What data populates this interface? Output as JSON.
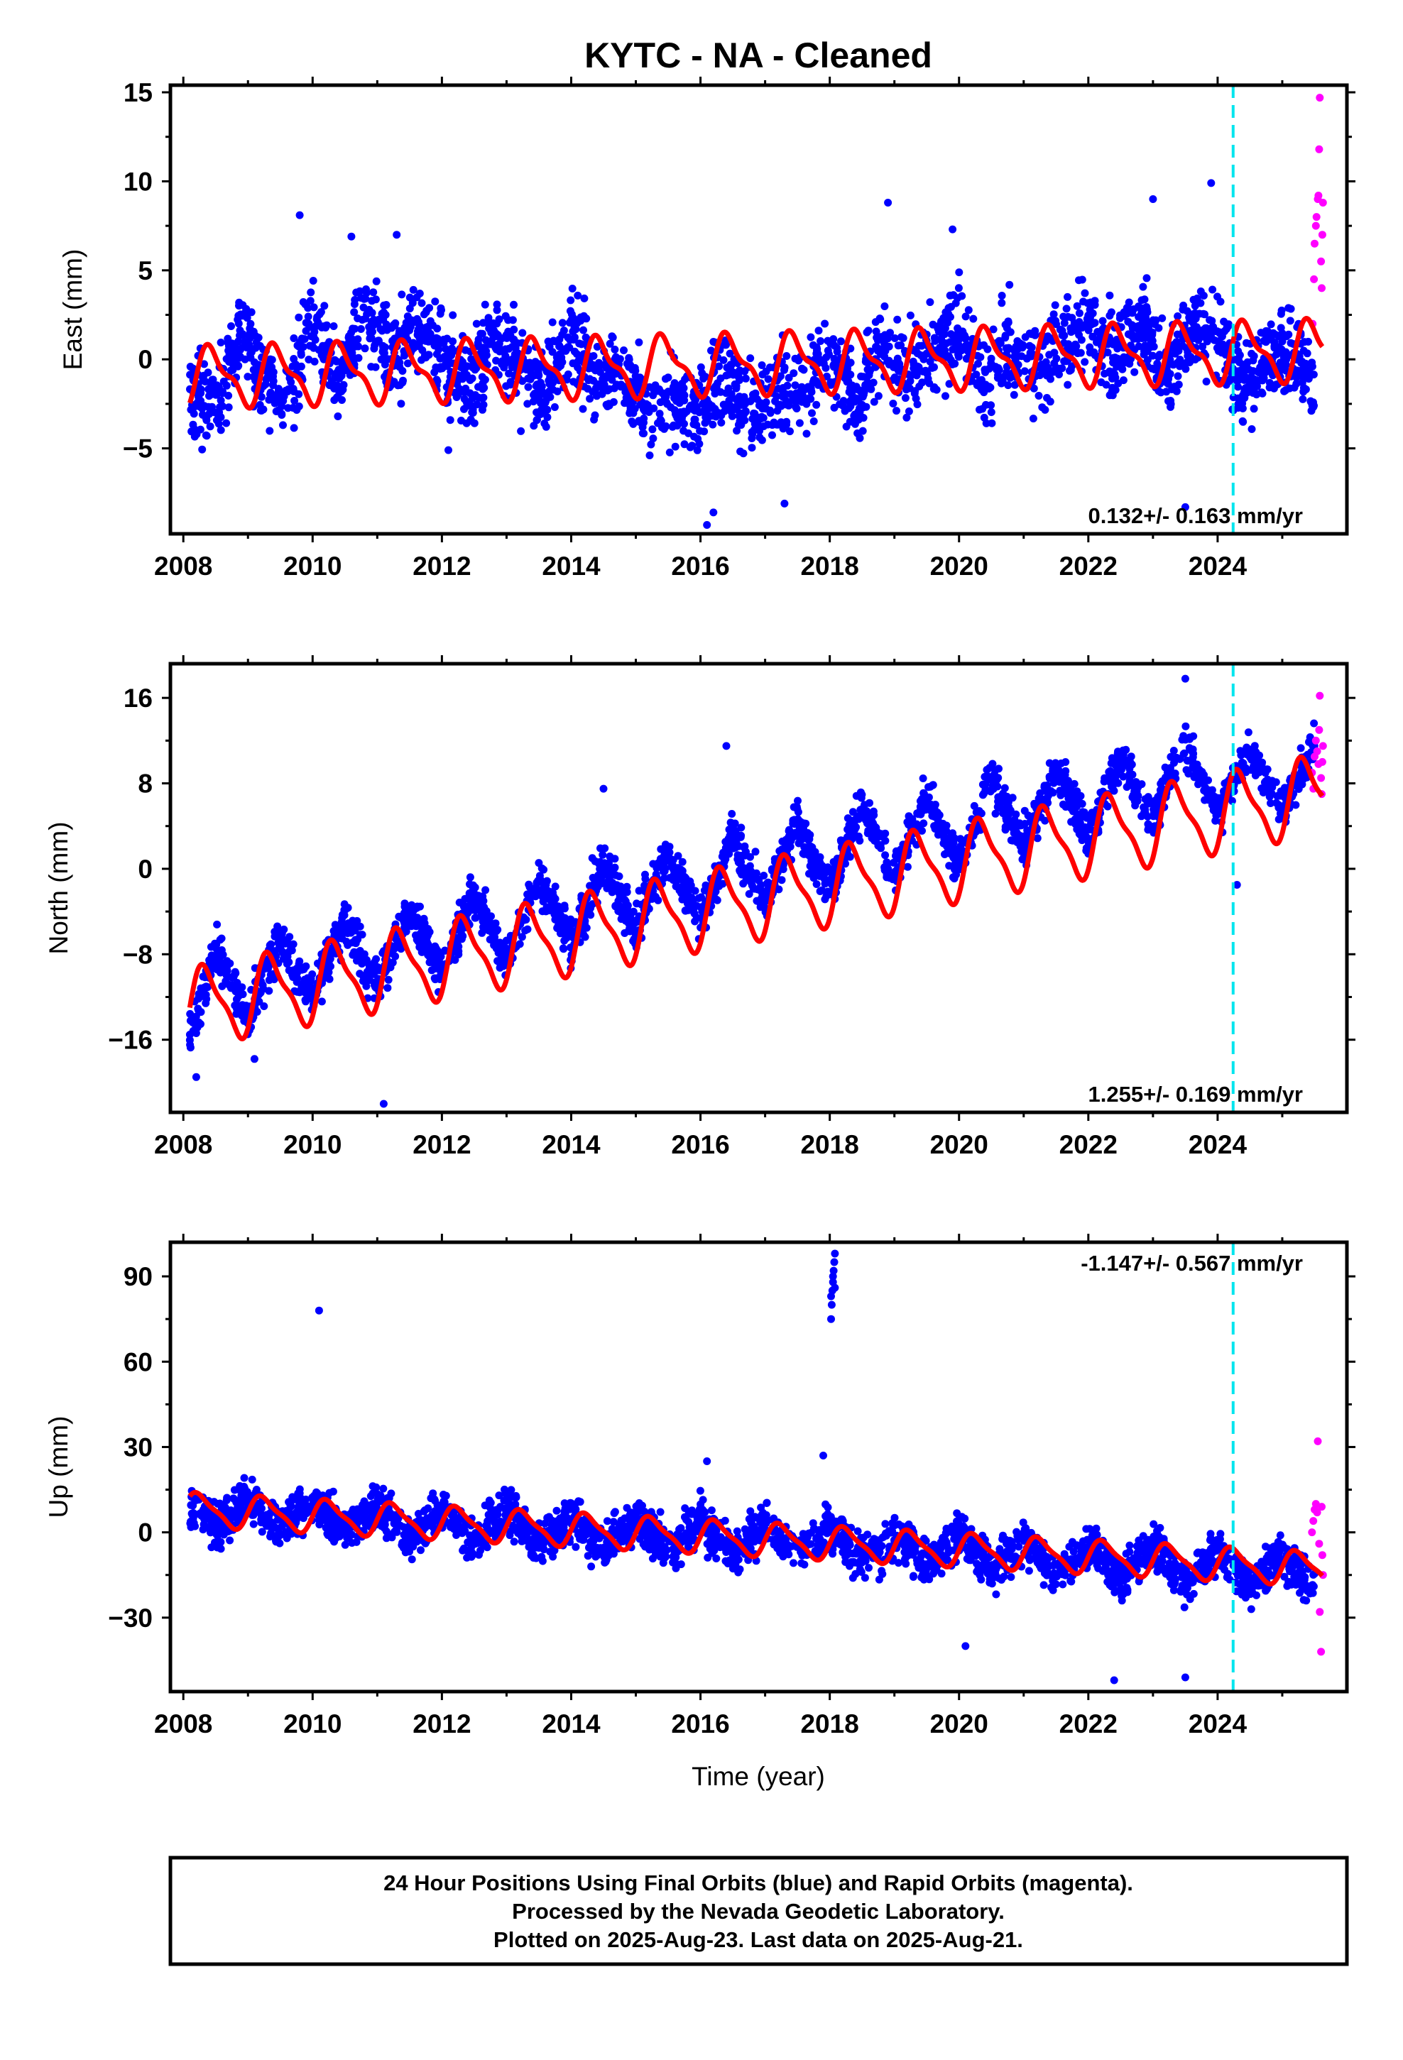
{
  "title": "KYTC  - NA - Cleaned",
  "colors": {
    "final": "#0000ff",
    "rapid": "#ff00ff",
    "model": "#ff0000",
    "marker": "#00e5ee"
  },
  "xlabel": "Time (year)",
  "footer": {
    "line1": "24 Hour Positions Using Final Orbits (blue) and Rapid Orbits (magenta).",
    "line2": "Processed by the Nevada Geodetic Laboratory.",
    "line3": "Plotted on 2025-Aug-23. Last data on 2025-Aug-21."
  },
  "chart_data": [
    {
      "type": "scatter",
      "id": "east",
      "ylabel": "East (mm)",
      "xlim": [
        2007.8,
        2026.0
      ],
      "ylim": [
        -9.8,
        15.4
      ],
      "xticks": [
        2008,
        2010,
        2012,
        2014,
        2016,
        2018,
        2020,
        2022,
        2024
      ],
      "xtick_labels": [
        "2008",
        "2010",
        "2012",
        "2014",
        "2016",
        "2018",
        "2020",
        "2022",
        "2024"
      ],
      "yticks": [
        -5,
        0,
        5,
        10,
        15
      ],
      "ytick_labels": [
        "−5",
        "0",
        "5",
        "10",
        "15"
      ],
      "rate_label": "0.132+/- 0.163 mm/yr",
      "marker_year": 2024.24,
      "series": [
        {
          "kind": "final_orbits",
          "x": [
            2008.1,
            2008.5,
            2008.9,
            2009.2,
            2009.6,
            2010.0,
            2010.4,
            2010.8,
            2011.2,
            2011.6,
            2012.0,
            2012.4,
            2012.8,
            2013.2,
            2013.6,
            2014.0,
            2014.4,
            2014.8,
            2015.2,
            2015.6,
            2016.0,
            2016.4,
            2016.8,
            2017.2,
            2017.6,
            2018.0,
            2018.4,
            2018.8,
            2019.2,
            2019.6,
            2020.0,
            2020.4,
            2020.8,
            2021.2,
            2021.6,
            2022.0,
            2022.4,
            2022.8,
            2023.2,
            2023.6,
            2024.0,
            2024.4,
            2024.8,
            2025.2,
            2025.5
          ],
          "y": [
            -1.5,
            -3.0,
            1.8,
            -1.0,
            -2.5,
            2.5,
            -1.5,
            2.5,
            0.0,
            1.5,
            0.5,
            -1.8,
            1.5,
            -1.0,
            -1.5,
            1.5,
            -1.0,
            -0.5,
            -3.0,
            -2.5,
            -3.0,
            -1.0,
            -3.5,
            -1.5,
            -2.0,
            0.5,
            -2.5,
            1.0,
            -1.0,
            0.5,
            1.5,
            -1.5,
            1.0,
            -0.5,
            1.0,
            2.0,
            0.0,
            2.5,
            -1.0,
            2.0,
            1.5,
            -1.5,
            0.5,
            0.0,
            -1.5
          ],
          "spread": 2.3
        },
        {
          "kind": "final_orbits_outliers",
          "x": [
            2009.8,
            2010.6,
            2016.1,
            2018.9,
            2019.9,
            2023.0,
            2023.9,
            2012.1,
            2016.2,
            2017.3,
            2023.5,
            2011.3
          ],
          "y": [
            8.1,
            6.9,
            -9.3,
            8.8,
            7.3,
            9.0,
            9.9,
            -5.1,
            -8.6,
            -8.1,
            -8.3,
            7.0
          ]
        },
        {
          "kind": "rapid_orbits",
          "x": [
            2025.47,
            2025.49,
            2025.5,
            2025.52,
            2025.53,
            2025.55,
            2025.56,
            2025.57,
            2025.58,
            2025.6,
            2025.61,
            2025.62,
            2025.63
          ],
          "y": [
            2.0,
            4.5,
            6.5,
            7.5,
            8.0,
            9.0,
            9.2,
            11.8,
            14.7,
            5.5,
            4.0,
            7.0,
            8.8
          ]
        },
        {
          "kind": "model",
          "mean_start": -1.0,
          "mean_end": 0.5,
          "step_2016": 0.0,
          "amplitude": 1.5,
          "semi_amplitude": 0.6,
          "phase": 0.2
        }
      ]
    },
    {
      "type": "scatter",
      "id": "north",
      "ylabel": "North (mm)",
      "xlim": [
        2007.8,
        2026.0
      ],
      "ylim": [
        -22.8,
        19.2
      ],
      "xticks": [
        2008,
        2010,
        2012,
        2014,
        2016,
        2018,
        2020,
        2022,
        2024
      ],
      "xtick_labels": [
        "2008",
        "2010",
        "2012",
        "2014",
        "2016",
        "2018",
        "2020",
        "2022",
        "2024"
      ],
      "yticks": [
        -16,
        -8,
        0,
        8,
        16
      ],
      "ytick_labels": [
        "−16",
        "−8",
        "0",
        "8",
        "16"
      ],
      "rate_label": "1.255+/- 0.169 mm/yr",
      "marker_year": 2024.24,
      "series": [
        {
          "kind": "final_orbits",
          "x": [
            2008.1,
            2008.5,
            2009.0,
            2009.5,
            2010.0,
            2010.5,
            2011.0,
            2011.5,
            2012.0,
            2012.5,
            2013.0,
            2013.5,
            2014.0,
            2014.5,
            2015.0,
            2015.5,
            2016.0,
            2016.5,
            2017.0,
            2017.5,
            2018.0,
            2018.5,
            2019.0,
            2019.5,
            2020.0,
            2020.5,
            2021.0,
            2021.5,
            2022.0,
            2022.5,
            2023.0,
            2023.5,
            2024.0,
            2024.5,
            2025.0,
            2025.5
          ],
          "y": [
            -15.5,
            -7.5,
            -14.0,
            -6.5,
            -12.0,
            -5.0,
            -11.0,
            -4.0,
            -9.5,
            -2.5,
            -8.5,
            -1.0,
            -7.0,
            0.5,
            -5.5,
            1.5,
            -4.5,
            3.0,
            -3.0,
            4.5,
            -2.0,
            6.0,
            -1.0,
            7.0,
            0.5,
            8.5,
            2.0,
            9.5,
            3.0,
            10.5,
            4.5,
            12.0,
            5.0,
            11.0,
            5.5,
            11.5
          ],
          "spread": 2.0
        },
        {
          "kind": "final_orbits_outliers",
          "x": [
            2011.1,
            2009.1,
            2014.5,
            2023.5,
            2016.4,
            2024.3,
            2008.2
          ],
          "y": [
            -22.0,
            -17.8,
            7.5,
            17.8,
            11.5,
            -1.5,
            -19.5
          ]
        },
        {
          "kind": "rapid_orbits",
          "x": [
            2025.46,
            2025.48,
            2025.5,
            2025.52,
            2025.54,
            2025.56,
            2025.57,
            2025.58,
            2025.6,
            2025.61,
            2025.62,
            2025.63
          ],
          "y": [
            9.0,
            7.5,
            10.5,
            12.0,
            11.0,
            9.8,
            13.0,
            16.2,
            8.5,
            7.0,
            10.0,
            11.5
          ]
        },
        {
          "kind": "model",
          "mean_start": -13.0,
          "mean_end": 7.0,
          "step_2016": 0.0,
          "amplitude": 3.4,
          "semi_amplitude": 1.0,
          "phase": 0.1
        }
      ]
    },
    {
      "type": "scatter",
      "id": "up",
      "ylabel": "Up (mm)",
      "xlim": [
        2007.8,
        2026.0
      ],
      "ylim": [
        -56.0,
        102.0
      ],
      "xticks": [
        2008,
        2010,
        2012,
        2014,
        2016,
        2018,
        2020,
        2022,
        2024
      ],
      "xtick_labels": [
        "2008",
        "2010",
        "2012",
        "2014",
        "2016",
        "2018",
        "2020",
        "2022",
        "2024"
      ],
      "yticks": [
        -30,
        0,
        30,
        60,
        90
      ],
      "ytick_labels": [
        "−30",
        "0",
        "30",
        "60",
        "90"
      ],
      "rate_label": "-1.147+/- 0.567 mm/yr",
      "marker_year": 2024.24,
      "series": [
        {
          "kind": "final_orbits",
          "x": [
            2008.1,
            2008.6,
            2009.0,
            2009.5,
            2010.0,
            2010.5,
            2011.0,
            2011.5,
            2012.0,
            2012.5,
            2013.0,
            2013.5,
            2014.0,
            2014.5,
            2015.0,
            2015.5,
            2016.0,
            2016.5,
            2017.0,
            2017.5,
            2018.0,
            2018.5,
            2019.0,
            2019.5,
            2020.0,
            2020.5,
            2021.0,
            2021.5,
            2022.0,
            2022.5,
            2023.0,
            2023.5,
            2024.0,
            2024.5,
            2025.0,
            2025.5
          ],
          "y": [
            8.0,
            2.0,
            12.0,
            2.0,
            11.0,
            0.0,
            10.0,
            -2.0,
            9.0,
            -3.0,
            8.0,
            -4.0,
            6.0,
            -5.0,
            5.0,
            -6.0,
            4.0,
            -7.0,
            3.0,
            -8.0,
            2.0,
            -9.0,
            -1.0,
            -11.0,
            0.0,
            -13.0,
            -3.0,
            -15.0,
            -5.0,
            -17.0,
            -4.0,
            -18.0,
            -6.0,
            -19.0,
            -8.0,
            -20.0
          ],
          "spread": 7.5
        },
        {
          "kind": "final_orbits_outliers",
          "x": [
            2010.1,
            2018.02,
            2018.03,
            2018.04,
            2018.05,
            2018.06,
            2018.07,
            2018.08,
            2018.02,
            2018.05,
            2018.08,
            2017.9,
            2022.4,
            2023.5,
            2020.1,
            2016.1
          ],
          "y": [
            78.0,
            75.0,
            80.0,
            85.0,
            88.0,
            92.0,
            95.0,
            98.0,
            83.0,
            90.0,
            86.0,
            27.0,
            -52.0,
            -51.0,
            -40.0,
            25.0
          ]
        },
        {
          "kind": "rapid_orbits",
          "x": [
            2025.46,
            2025.48,
            2025.5,
            2025.52,
            2025.54,
            2025.55,
            2025.57,
            2025.58,
            2025.6,
            2025.61,
            2025.62,
            2025.63
          ],
          "y": [
            0.0,
            4.0,
            8.0,
            10.0,
            7.0,
            32.0,
            -4.0,
            -28.0,
            -42.0,
            9.0,
            -8.0,
            -15.0
          ]
        },
        {
          "kind": "model",
          "mean_start": 8.0,
          "mean_end": -13.0,
          "step_2016": 0.0,
          "amplitude": 5.5,
          "semi_amplitude": 1.5,
          "phase": 0.0
        }
      ]
    }
  ]
}
